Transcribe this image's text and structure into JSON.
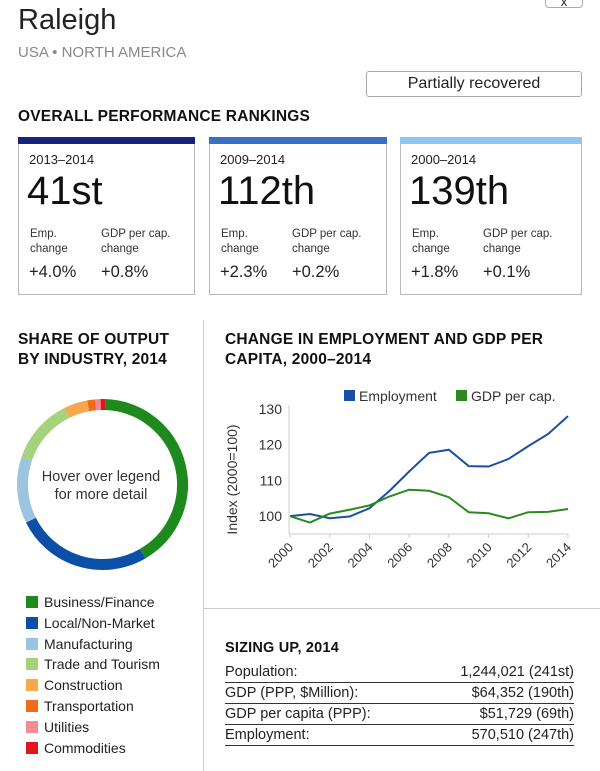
{
  "header": {
    "title": "Raleigh",
    "subtitle": "USA • NORTH AMERICA",
    "close_label": "x",
    "status": "Partially recovered"
  },
  "rankings": {
    "heading": "OVERALL PERFORMANCE RANKINGS",
    "cards": [
      {
        "period": "2013–2014",
        "rank": "41st",
        "emp_label_1": "Emp.",
        "emp_label_2": "change",
        "gdp_label_1": "GDP per cap.",
        "gdp_label_2": "change",
        "emp": "+4.0%",
        "gdp": "+0.8%",
        "color": "#17237a"
      },
      {
        "period": "2009–2014",
        "rank": "112th",
        "emp_label_1": "Emp.",
        "emp_label_2": "change",
        "gdp_label_1": "GDP per cap.",
        "gdp_label_2": "change",
        "emp": "+2.3%",
        "gdp": "+0.2%",
        "color": "#3a6fc6"
      },
      {
        "period": "2000–2014",
        "rank": "139th",
        "emp_label_1": "Emp.",
        "emp_label_2": "change",
        "gdp_label_1": "GDP per cap.",
        "gdp_label_2": "change",
        "emp": "+1.8%",
        "gdp": "+0.1%",
        "color": "#8ec6f0"
      }
    ]
  },
  "share": {
    "heading_1": "SHARE OF OUTPUT",
    "heading_2": "BY INDUSTRY, 2014",
    "center_1": "Hover over legend",
    "center_2": "for more detail",
    "industries": [
      {
        "label": "Business/Finance",
        "color": "#1e8a1e",
        "share": 41
      },
      {
        "label": "Local/Non-Market",
        "color": "#0b4fa8",
        "share": 26
      },
      {
        "label": "Manufacturing",
        "color": "#9cc3e0",
        "share": 12.5
      },
      {
        "label": "Trade and Tourism",
        "color": "#a6d27c",
        "share": 12.5
      },
      {
        "label": "Construction",
        "color": "#f7a84c",
        "share": 4.5
      },
      {
        "label": "Transportation",
        "color": "#f26a1a",
        "share": 1.5
      },
      {
        "label": "Utilities",
        "color": "#f28b95",
        "share": 1
      },
      {
        "label": "Commodities",
        "color": "#e3141b",
        "share": 1
      }
    ]
  },
  "chart_data": {
    "type": "line",
    "title_1": "CHANGE IN EMPLOYMENT AND GDP PER",
    "title_2": "CAPITA, 2000–2014",
    "ylabel": "Index (2000=100)",
    "ylim": [
      95,
      130
    ],
    "yticks": [
      "100",
      "110",
      "120",
      "130"
    ],
    "xticks": [
      "2000",
      "2002",
      "2004",
      "2006",
      "2008",
      "2010",
      "2012",
      "2014"
    ],
    "x": [
      2000,
      2001,
      2002,
      2003,
      2004,
      2005,
      2006,
      2007,
      2008,
      2009,
      2010,
      2011,
      2012,
      2013,
      2014
    ],
    "series": [
      {
        "name": "Employment",
        "color": "#1a4fa6",
        "values": [
          100,
          100.6,
          99.4,
          99.9,
          102.2,
          107,
          112.5,
          117.7,
          118.6,
          114,
          113.9,
          116,
          119.6,
          123,
          128
        ]
      },
      {
        "name": "GDP per cap.",
        "color": "#2b8a1f",
        "values": [
          100,
          98.2,
          100.7,
          101.8,
          103,
          105.5,
          107.4,
          107.1,
          105.3,
          101.1,
          100.8,
          99.4,
          101.1,
          101.2,
          102
        ]
      }
    ],
    "legend": "top-right"
  },
  "sizing": {
    "heading": "SIZING UP, 2014",
    "rows": [
      {
        "label": "Population:",
        "value": "1,244,021 (241st)"
      },
      {
        "label": "GDP (PPP, $Million):",
        "value": "$64,352 (190th)"
      },
      {
        "label": "GDP per capita (PPP):",
        "value": "$51,729 (69th)"
      },
      {
        "label": "Employment:",
        "value": "570,510 (247th)"
      }
    ]
  }
}
